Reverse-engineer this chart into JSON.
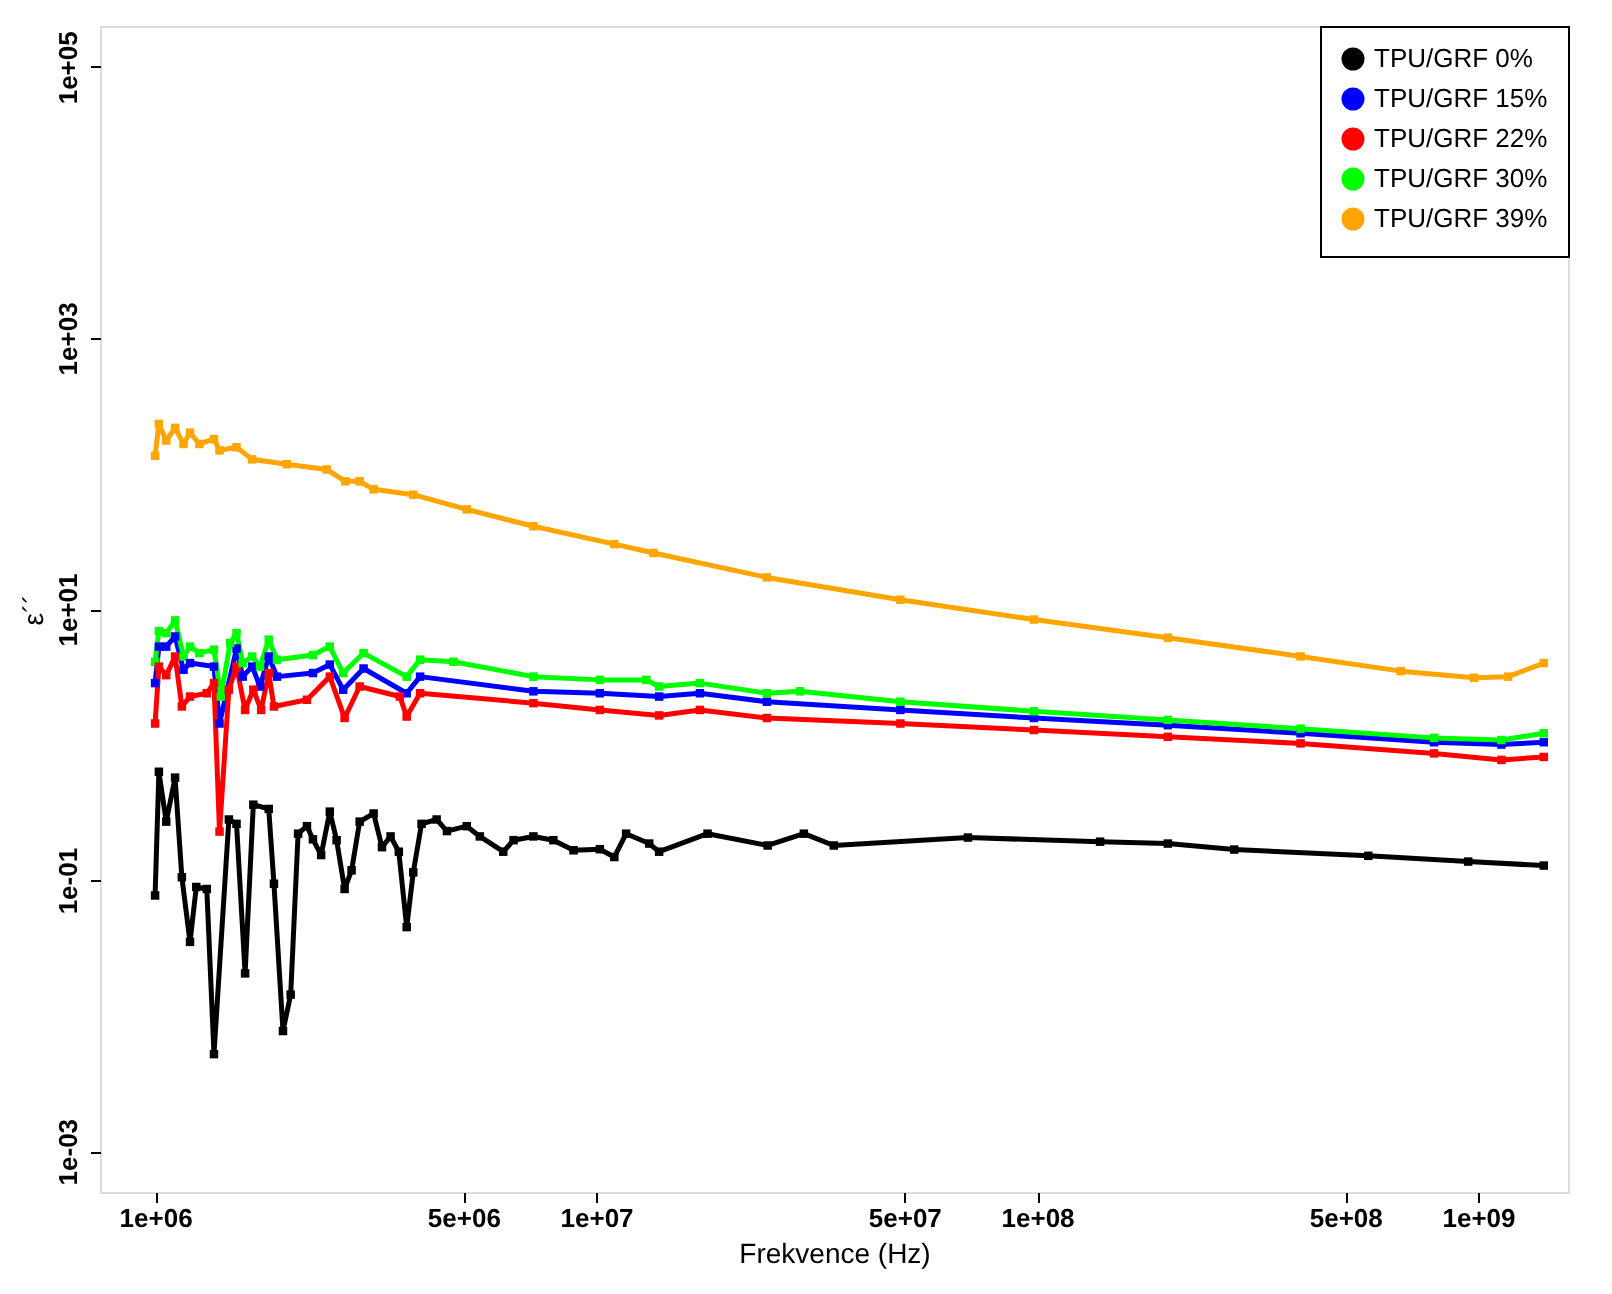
{
  "chart_data": {
    "type": "line",
    "xlabel": "Frekvence (Hz)",
    "ylabel": "ε´´",
    "log": "xy",
    "grid": false,
    "legend": "top right",
    "marker": "square",
    "line_style": "solid",
    "xlim": [
      750000,
      1600000000
    ],
    "ylim": [
      0.0005,
      200000
    ],
    "xticks": [
      {
        "value": 1000000,
        "label": "1e+06"
      },
      {
        "value": 5000000,
        "label": "5e+06"
      },
      {
        "value": 10000000,
        "label": "1e+07"
      },
      {
        "value": 50000000,
        "label": "5e+07"
      },
      {
        "value": 100000000,
        "label": "1e+08"
      },
      {
        "value": 500000000,
        "label": "5e+08"
      },
      {
        "value": 1000000000,
        "label": "1e+09"
      }
    ],
    "yticks": [
      {
        "value": 0.001,
        "label": "1e-03"
      },
      {
        "value": 0.1,
        "label": "1e-01"
      },
      {
        "value": 10,
        "label": "1e+01"
      },
      {
        "value": 1000,
        "label": "1e+03"
      },
      {
        "value": 100000,
        "label": "1e+05"
      }
    ],
    "series": [
      {
        "name": "TPU/GRF 0%",
        "color": "#000000",
        "x": [
          1000000,
          1020000,
          1060000,
          1110000,
          1150000,
          1200000,
          1240000,
          1310000,
          1360000,
          1470000,
          1530000,
          1600000,
          1670000,
          1810000,
          1860000,
          1950000,
          2030000,
          2110000,
          2210000,
          2280000,
          2380000,
          2490000,
          2580000,
          2690000,
          2790000,
          2910000,
          3130000,
          3270000,
          3420000,
          3570000,
          3720000,
          3850000,
          4020000,
          4350000,
          4590000,
          5090000,
          5450000,
          6160000,
          6500000,
          7210000,
          8000000,
          8890000,
          10200000,
          11000000,
          11700000,
          13200000,
          13900000,
          17900000,
          24500000,
          29600000,
          34600000,
          69700000,
          139000000,
          198000000,
          280000000,
          564000000,
          950000000,
          1410000000
        ],
        "values": [
          0.077,
          0.63,
          0.27,
          0.57,
          0.105,
          0.035,
          0.089,
          0.086,
          0.0052,
          0.28,
          0.26,
          0.0205,
          0.36,
          0.335,
          0.094,
          0.0077,
          0.0143,
          0.22,
          0.25,
          0.2,
          0.153,
          0.32,
          0.197,
          0.086,
          0.118,
          0.27,
          0.31,
          0.175,
          0.21,
          0.162,
          0.045,
          0.114,
          0.26,
          0.28,
          0.23,
          0.25,
          0.21,
          0.162,
          0.197,
          0.21,
          0.197,
          0.166,
          0.169,
          0.148,
          0.22,
          0.186,
          0.162,
          0.22,
          0.18,
          0.22,
          0.18,
          0.206,
          0.192,
          0.186,
          0.168,
          0.151,
          0.137,
          0.128
        ]
      },
      {
        "name": "TPU/GRF 15%",
        "color": "#0000ff",
        "x": [
          1000000,
          1020000,
          1060000,
          1110000,
          1160000,
          1200000,
          1360000,
          1400000,
          1530000,
          1580000,
          1660000,
          1730000,
          1810000,
          1890000,
          2280000,
          2490000,
          2670000,
          2970000,
          3720000,
          3990000,
          7210000,
          10200000,
          13900000,
          17200000,
          24400000,
          49000000,
          98400000,
          198000000,
          396000000,
          795000000,
          1130000000,
          1410000000
        ],
        "values": [
          2.84,
          5.28,
          5.28,
          6.27,
          3.56,
          3.99,
          3.76,
          1.43,
          5.11,
          3.17,
          3.76,
          2.68,
          4.46,
          3.17,
          3.37,
          3.89,
          2.54,
          3.64,
          2.39,
          3.17,
          2.47,
          2.39,
          2.26,
          2.39,
          2.07,
          1.8,
          1.57,
          1.39,
          1.21,
          1.04,
          1.0,
          1.04
        ]
      },
      {
        "name": "TPU/GRF 22%",
        "color": "#ff0000",
        "x": [
          1000000,
          1020000,
          1060000,
          1110000,
          1150000,
          1200000,
          1310000,
          1360000,
          1400000,
          1470000,
          1530000,
          1600000,
          1670000,
          1740000,
          1810000,
          1860000,
          2210000,
          2490000,
          2690000,
          2910000,
          3590000,
          3720000,
          3990000,
          7210000,
          10200000,
          13900000,
          17200000,
          24400000,
          49000000,
          98400000,
          198000000,
          396000000,
          795000000,
          1130000000,
          1410000000
        ],
        "values": [
          1.43,
          3.76,
          3.25,
          4.46,
          1.91,
          2.26,
          2.39,
          2.84,
          0.228,
          2.54,
          3.76,
          1.8,
          2.54,
          1.8,
          3.37,
          1.91,
          2.14,
          3.17,
          1.57,
          2.68,
          2.26,
          1.61,
          2.39,
          2.02,
          1.8,
          1.64,
          1.8,
          1.57,
          1.43,
          1.28,
          1.14,
          1.02,
          0.86,
          0.77,
          0.81
        ]
      },
      {
        "name": "TPU/GRF 30%",
        "color": "#00ff00",
        "x": [
          1000000,
          1020000,
          1060000,
          1110000,
          1160000,
          1200000,
          1260000,
          1360000,
          1410000,
          1480000,
          1530000,
          1580000,
          1660000,
          1730000,
          1810000,
          1890000,
          2280000,
          2490000,
          2670000,
          2970000,
          3720000,
          3990000,
          4750000,
          7210000,
          10200000,
          13000000,
          13900000,
          17200000,
          24400000,
          29000000,
          49000000,
          98400000,
          198000000,
          396000000,
          795000000,
          1130000000,
          1410000000
        ],
        "values": [
          4.08,
          6.87,
          6.64,
          8.24,
          4.46,
          5.28,
          4.73,
          5.01,
          2.26,
          5.61,
          6.64,
          3.99,
          4.46,
          3.76,
          5.94,
          4.23,
          4.57,
          5.28,
          3.37,
          4.73,
          3.17,
          4.23,
          4.08,
          3.17,
          3.0,
          3.0,
          2.68,
          2.84,
          2.39,
          2.47,
          2.07,
          1.76,
          1.52,
          1.31,
          1.12,
          1.08,
          1.21
        ]
      },
      {
        "name": "TPU/GRF 39%",
        "color": "#ffa500",
        "x": [
          1000000,
          1020000,
          1060000,
          1110000,
          1160000,
          1200000,
          1260000,
          1360000,
          1400000,
          1530000,
          1660000,
          1990000,
          2450000,
          2700000,
          2910000,
          3130000,
          3850000,
          5090000,
          7210000,
          11000000,
          13500000,
          24400000,
          49000000,
          98400000,
          198000000,
          396000000,
          668000000,
          980000000,
          1170000000,
          1410000000
        ],
        "values": [
          135,
          232,
          175,
          217,
          165,
          200,
          165,
          179,
          148,
          156,
          127,
          117,
          107,
          87.5,
          87.5,
          76.4,
          69.7,
          54.3,
          40.8,
          30.1,
          25.9,
          17.1,
          11.7,
          8.36,
          6.14,
          4.47,
          3.48,
          3.11,
          3.17,
          3.99
        ]
      }
    ]
  }
}
